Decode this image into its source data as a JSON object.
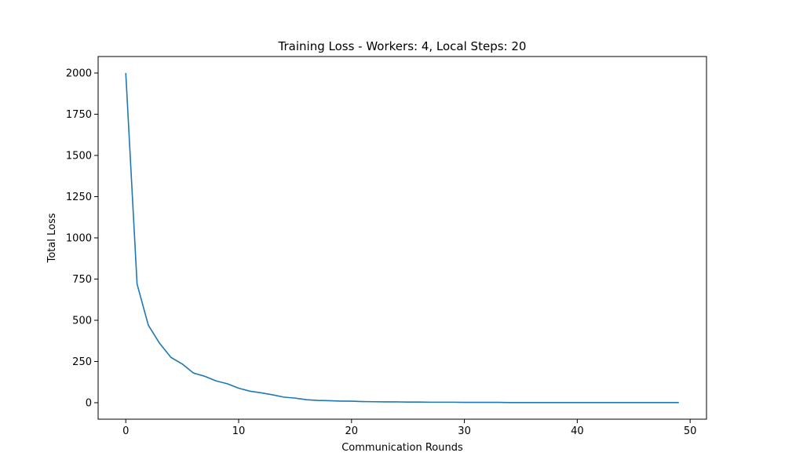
{
  "chart_data": {
    "type": "line",
    "title": "Training Loss - Workers: 4, Local Steps: 20",
    "xlabel": "Communication Rounds",
    "ylabel": "Total Loss",
    "xlim": [
      -2.45,
      51.45
    ],
    "ylim": [
      -100,
      2100
    ],
    "xticks": [
      0,
      10,
      20,
      30,
      40,
      50
    ],
    "yticks": [
      0,
      250,
      500,
      750,
      1000,
      1250,
      1500,
      1750,
      2000
    ],
    "grid": false,
    "legend": "none",
    "line_color": "#1f77b4",
    "series": [
      {
        "x": [
          0,
          1,
          2,
          3,
          4,
          5,
          6,
          7,
          8,
          9,
          10,
          11,
          12,
          13,
          14,
          15,
          16,
          17,
          18,
          19,
          20,
          21,
          22,
          23,
          24,
          25,
          26,
          27,
          28,
          29,
          30,
          31,
          32,
          33,
          34,
          35,
          36,
          37,
          38,
          39,
          40,
          41,
          42,
          43,
          44,
          45,
          46,
          47,
          48,
          49
        ],
        "values": [
          2000,
          720,
          470,
          360,
          275,
          235,
          180,
          160,
          132,
          115,
          88,
          70,
          60,
          48,
          34,
          28,
          18,
          14,
          12,
          10,
          9,
          7,
          6,
          5,
          5,
          4,
          4,
          3,
          3,
          3,
          2,
          2,
          2,
          2,
          1,
          1,
          1,
          1,
          1,
          1,
          1,
          1,
          1,
          1,
          1,
          1,
          1,
          1,
          1,
          1
        ]
      }
    ]
  }
}
